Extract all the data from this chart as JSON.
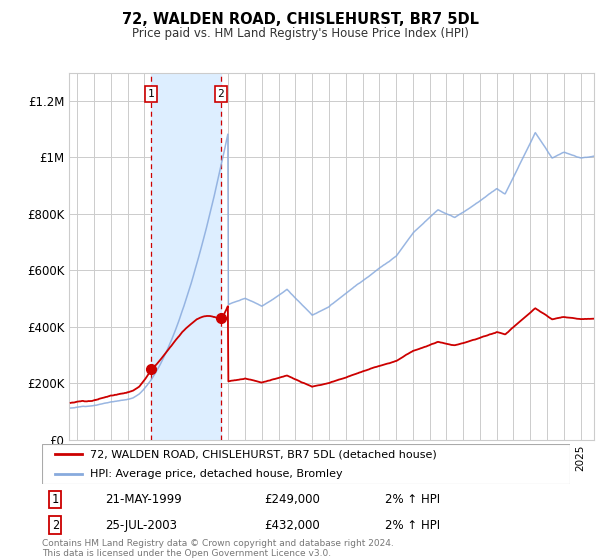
{
  "title": "72, WALDEN ROAD, CHISLEHURST, BR7 5DL",
  "subtitle": "Price paid vs. HM Land Registry's House Price Index (HPI)",
  "ylim": [
    0,
    1300000
  ],
  "yticks": [
    0,
    200000,
    400000,
    600000,
    800000,
    1000000,
    1200000
  ],
  "ytick_labels": [
    "£0",
    "£200K",
    "£400K",
    "£600K",
    "£800K",
    "£1M",
    "£1.2M"
  ],
  "background_color": "#ffffff",
  "plot_bg_color": "#ffffff",
  "grid_color": "#cccccc",
  "sale1": {
    "date_num": 1999.38,
    "price": 249000,
    "label": "1",
    "date_str": "21-MAY-1999",
    "pct": "2%"
  },
  "sale2": {
    "date_num": 2003.56,
    "price": 432000,
    "label": "2",
    "date_str": "25-JUL-2003",
    "pct": "2%"
  },
  "hpi_line_color": "#88aadd",
  "price_line_color": "#cc0000",
  "sale_marker_color": "#cc0000",
  "vline_color": "#cc0000",
  "shade_color": "#ddeeff",
  "legend_line1": "72, WALDEN ROAD, CHISLEHURST, BR7 5DL (detached house)",
  "legend_line2": "HPI: Average price, detached house, Bromley",
  "footer": "Contains HM Land Registry data © Crown copyright and database right 2024.\nThis data is licensed under the Open Government Licence v3.0.",
  "xmin": 1994.5,
  "xmax": 2025.8
}
